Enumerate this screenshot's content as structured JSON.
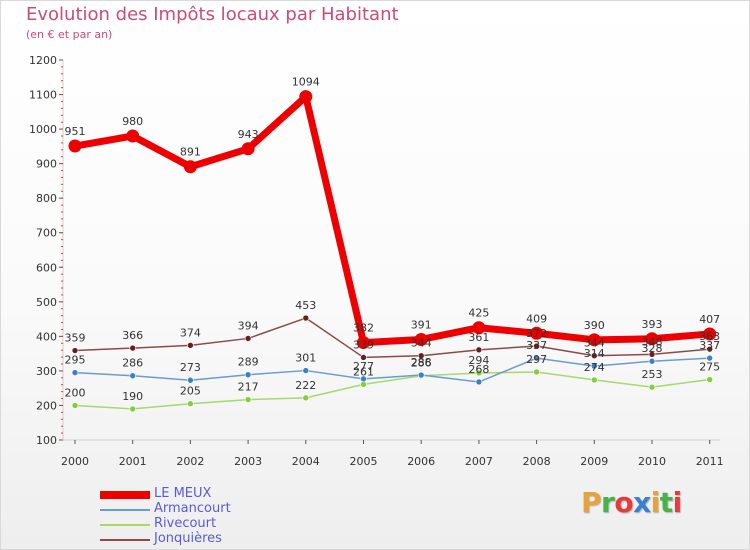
{
  "header": {
    "title": "Evolution des Impôts locaux par Habitant",
    "subtitle": "(en € et par an)"
  },
  "logo": {
    "text": "Proxiti",
    "letter_colors": [
      "#e8a23c",
      "#48b24a",
      "#e63b3b",
      "#3a7fd0",
      "#e8a23c",
      "#48b24a",
      "#e63b3b"
    ]
  },
  "chart_data": {
    "type": "line",
    "title": "Evolution des Impôts locaux par Habitant",
    "subtitle": "(en € et par an)",
    "xlabel": "",
    "ylabel": "",
    "categories": [
      "2000",
      "2001",
      "2002",
      "2003",
      "2004",
      "2005",
      "2006",
      "2007",
      "2008",
      "2009",
      "2010",
      "2011"
    ],
    "ylim": [
      100,
      1200
    ],
    "yticks": [
      100,
      200,
      300,
      400,
      500,
      600,
      700,
      800,
      900,
      1000,
      1100,
      1200
    ],
    "grid": false,
    "legend_position": "bottom-left",
    "series": [
      {
        "name": "LE MEUX",
        "color": "#ee0000",
        "point_color": "#ee0000",
        "values": [
          951,
          980,
          891,
          943,
          1094,
          382,
          391,
          425,
          409,
          390,
          393,
          407
        ],
        "labels": [
          "951",
          "980",
          "891",
          "943",
          "1094",
          "382",
          "391",
          "425",
          "409",
          "390",
          "393",
          "407"
        ]
      },
      {
        "name": "Armancourt",
        "color": "#6b9bd2",
        "point_color": "#3f7fc8",
        "values": [
          295,
          286,
          273,
          289,
          301,
          277,
          288,
          268,
          337,
          314,
          328,
          337
        ],
        "labels": [
          "295",
          "286",
          "273",
          "289",
          "301",
          "277",
          "288",
          "268",
          "337",
          "314",
          "328",
          "337"
        ]
      },
      {
        "name": "Rivecourt",
        "color": "#a6d96a",
        "point_color": "#7fcf3f",
        "values": [
          200,
          190,
          205,
          217,
          222,
          261,
          286,
          294,
          297,
          274,
          253,
          275
        ],
        "labels": [
          "200",
          "190",
          "205",
          "217",
          "222",
          "261",
          "286",
          "294",
          "297",
          "274",
          "253",
          "275"
        ]
      },
      {
        "name": "Jonquières",
        "color": "#8c4a4a",
        "point_color": "#6b1e1e",
        "values": [
          359,
          366,
          374,
          394,
          453,
          339,
          344,
          361,
          372,
          344,
          348,
          363
        ],
        "labels": [
          "359",
          "366",
          "374",
          "394",
          "453",
          "339",
          "344",
          "361",
          "372",
          "344",
          "348",
          "363"
        ]
      }
    ]
  }
}
